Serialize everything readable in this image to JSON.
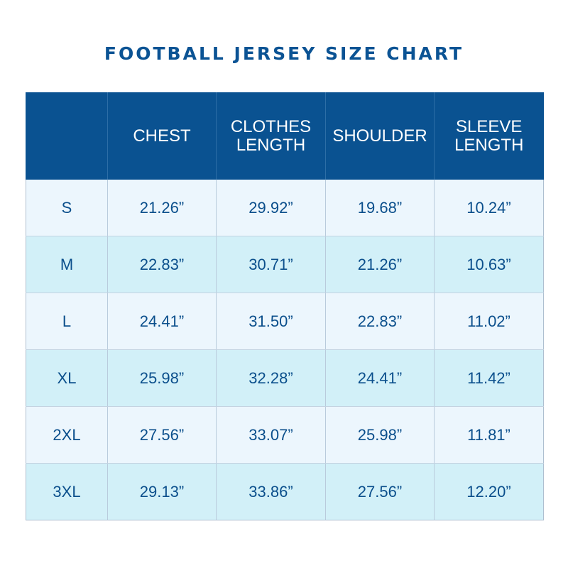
{
  "title": "FOOTBALL JERSEY SIZE CHART",
  "table": {
    "headers": [
      "",
      "CHEST",
      "CLOTHES\nLENGTH",
      "SHOULDER",
      "SLEEVE\nLENGTH"
    ],
    "rows": [
      [
        "S",
        "21.26”",
        "29.92”",
        "19.68”",
        "10.24”"
      ],
      [
        "M",
        "22.83”",
        "30.71”",
        "21.26”",
        "10.63”"
      ],
      [
        "L",
        "24.41”",
        "31.50”",
        "22.83”",
        "11.02”"
      ],
      [
        "XL",
        "25.98”",
        "32.28”",
        "24.41”",
        "11.42”"
      ],
      [
        "2XL",
        "27.56”",
        "33.07”",
        "25.98”",
        "11.81”"
      ],
      [
        "3XL",
        "29.13”",
        "33.86”",
        "27.56”",
        "12.20”"
      ]
    ]
  },
  "colors": {
    "header_bg": "#0a5291",
    "title_text": "#0b5394",
    "row_odd_bg": "#ecf6fd",
    "row_even_bg": "#d2f0f8",
    "cell_text": "#0b4f8c"
  }
}
